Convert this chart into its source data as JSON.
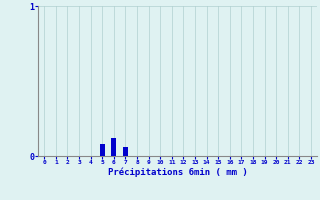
{
  "hours": [
    0,
    1,
    2,
    3,
    4,
    5,
    6,
    7,
    8,
    9,
    10,
    11,
    12,
    13,
    14,
    15,
    16,
    17,
    18,
    19,
    20,
    21,
    22,
    23
  ],
  "precipitation": [
    0,
    0,
    0,
    0,
    0,
    0.08,
    0.12,
    0.06,
    0,
    0,
    0,
    0,
    0,
    0,
    0,
    0,
    0,
    0,
    0,
    0,
    0,
    0,
    0,
    0
  ],
  "bar_color": "#0000cc",
  "background_color": "#dff2f2",
  "grid_color": "#b0d0d0",
  "axis_color": "#888888",
  "text_color": "#0000cc",
  "xlabel": "Précipitations 6min ( mm )",
  "ylim": [
    0,
    1.0
  ],
  "xlim": [
    -0.5,
    23.5
  ],
  "yticks": [
    0,
    1
  ],
  "xtick_labels": [
    "0",
    "1",
    "2",
    "3",
    "4",
    "5",
    "6",
    "7",
    "8",
    "9",
    "10",
    "11",
    "12",
    "13",
    "14",
    "15",
    "16",
    "17",
    "18",
    "19",
    "20",
    "21",
    "22",
    "23"
  ]
}
